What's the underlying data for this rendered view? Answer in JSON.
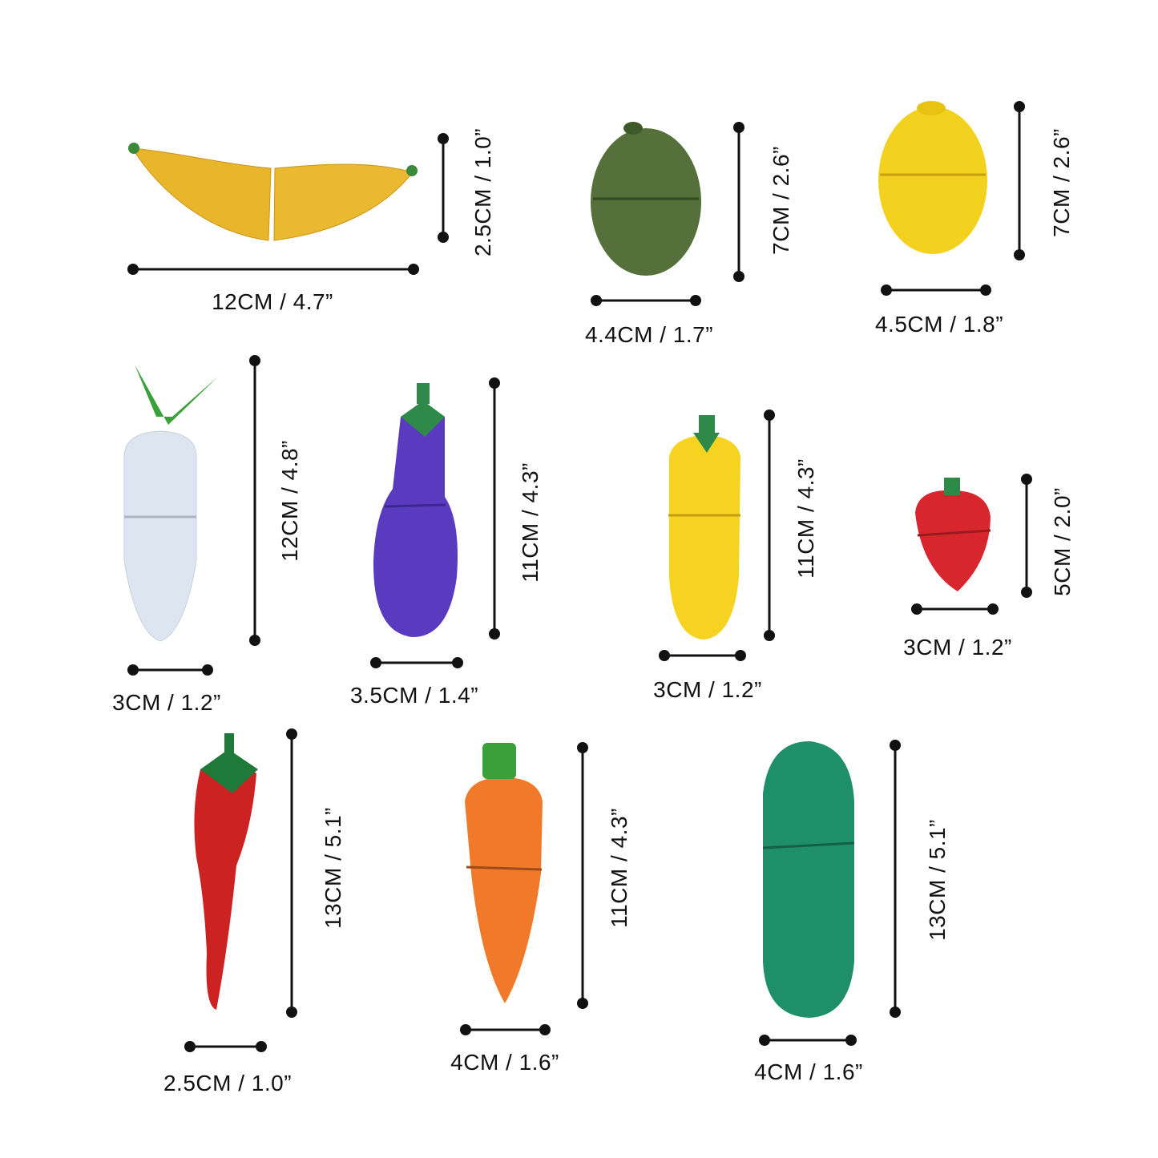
{
  "items": [
    {
      "name": "banana",
      "width_label": "12CM / 4.7”",
      "height_label": "2.5CM / 1.0”",
      "color": "#e9b52a"
    },
    {
      "name": "lime",
      "width_label": "4.4CM / 1.7”",
      "height_label": "7CM / 2.6”",
      "color": "#55703a"
    },
    {
      "name": "lemon",
      "width_label": "4.5CM / 1.8”",
      "height_label": "7CM / 2.6”",
      "color": "#f2d21e"
    },
    {
      "name": "radish",
      "width_label": "3CM / 1.2”",
      "height_label": "12CM / 4.8”",
      "color": "#dde6f0"
    },
    {
      "name": "eggplant",
      "width_label": "3.5CM / 1.4”",
      "height_label": "11CM / 4.3”",
      "color": "#5a3bc0"
    },
    {
      "name": "corn",
      "width_label": "3CM / 1.2”",
      "height_label": "11CM / 4.3”",
      "color": "#f5d320"
    },
    {
      "name": "strawberry",
      "width_label": "3CM / 1.2”",
      "height_label": "5CM / 2.0”",
      "color": "#d8262f"
    },
    {
      "name": "chili-pepper",
      "width_label": "2.5CM / 1.0”",
      "height_label": "13CM / 5.1”",
      "color": "#cc2222"
    },
    {
      "name": "carrot",
      "width_label": "4CM / 1.6”",
      "height_label": "11CM / 4.3”",
      "color": "#f07a2a"
    },
    {
      "name": "cucumber",
      "width_label": "4CM / 1.6”",
      "height_label": "13CM / 5.1”",
      "color": "#1f8f6a"
    }
  ]
}
